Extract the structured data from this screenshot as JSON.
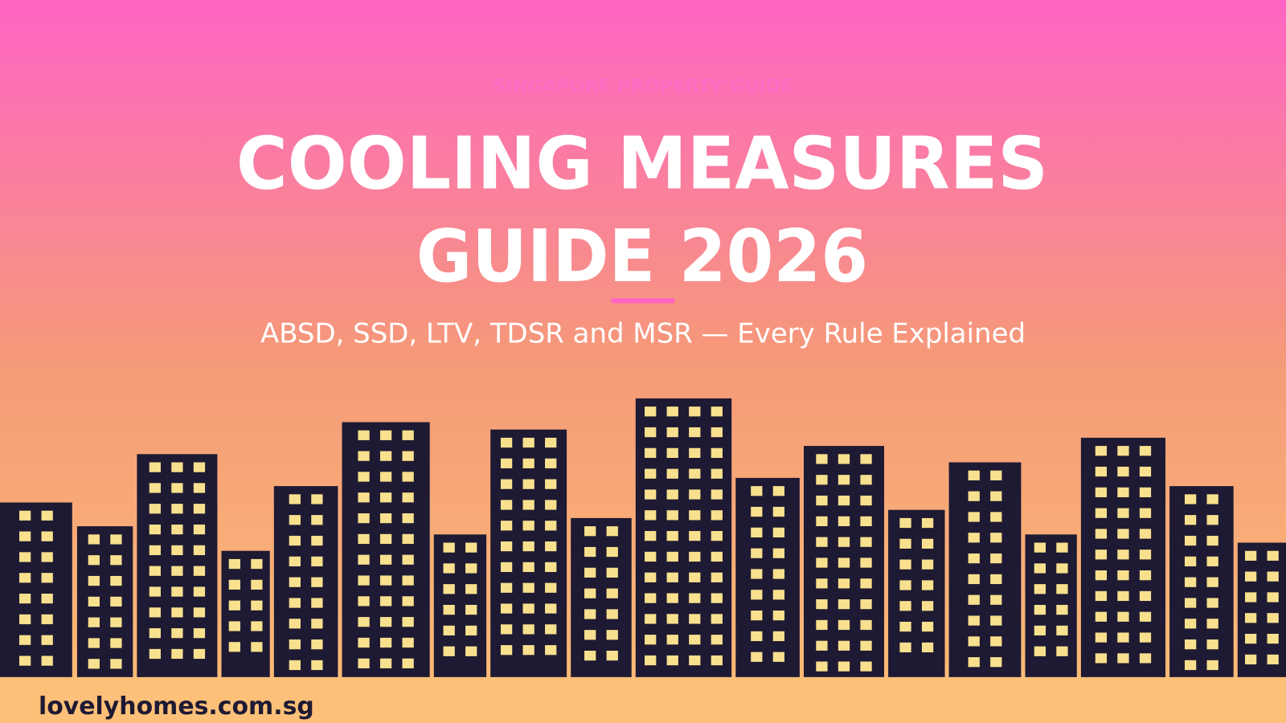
{
  "eyebrow": "SINGAPORE PROPERTY GUIDE",
  "title": {
    "line1": "COOLING MEASURES",
    "line2": "GUIDE 2026"
  },
  "subtitle": "ABSD, SSD, LTV, TDSR and MSR — Every Rule Explained",
  "footer": "lovelyhomes.com.sg"
}
